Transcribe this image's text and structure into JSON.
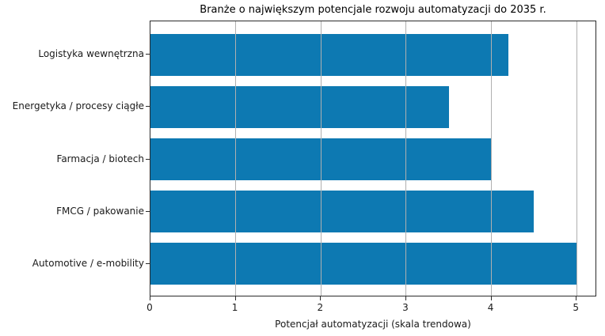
{
  "chart_data": {
    "type": "bar",
    "orientation": "horizontal",
    "title": "Branże o największym potencjale rozwoju automatyzacji do 2035 r.",
    "categories": [
      "Logistyka wewnętrzna",
      "Energetyka / procesy ciągłe",
      "Farmacja / biotech",
      "FMCG / pakowanie",
      "Automotive / e-mobility"
    ],
    "values": [
      4.2,
      3.5,
      4.0,
      4.5,
      5.0
    ],
    "xlabel": "Potencjał automatyzacji (skala trendowa)",
    "ylabel": "",
    "xticks": [
      0,
      1,
      2,
      3,
      4,
      5
    ],
    "xlim": [
      0,
      5.24
    ],
    "grid": "vertical-over-bars",
    "legend": "none",
    "bar_color": "#0d79b2",
    "grid_color": "#b0b0b0",
    "spine_color": "#2b2b2b",
    "text_color": "#1a1a1a"
  }
}
